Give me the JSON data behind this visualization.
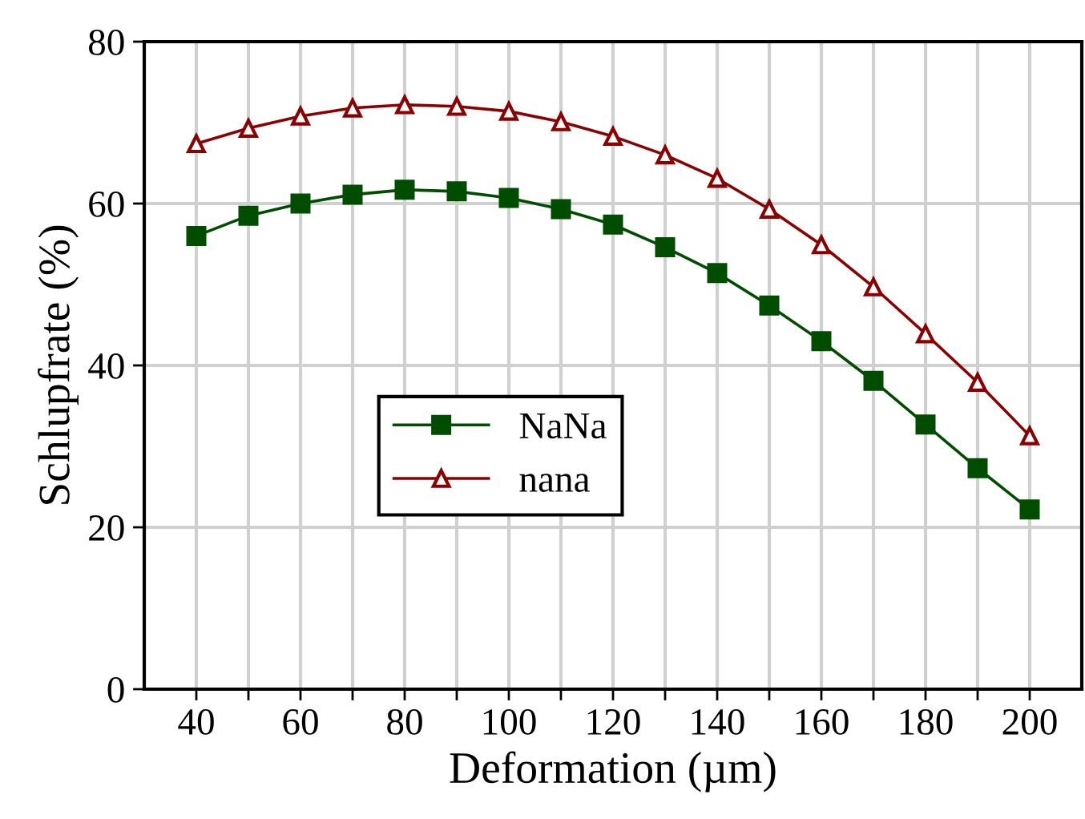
{
  "chart_data": {
    "type": "line",
    "xlabel": "Deformation (µm)",
    "ylabel": "Schlupfrate (%)",
    "x": [
      40,
      50,
      60,
      70,
      80,
      90,
      100,
      110,
      120,
      130,
      140,
      150,
      160,
      170,
      180,
      190,
      200
    ],
    "series": [
      {
        "name": "NaNa",
        "color": "#004d00",
        "marker": "square",
        "values": [
          56.0,
          58.5,
          60.0,
          61.1,
          61.7,
          61.5,
          60.7,
          59.3,
          57.4,
          54.6,
          51.4,
          47.4,
          43.0,
          38.1,
          32.7,
          27.3,
          22.2
        ]
      },
      {
        "name": "nana",
        "color": "#8b0000",
        "marker": "triangle",
        "values": [
          67.4,
          69.3,
          70.8,
          71.8,
          72.2,
          72.0,
          71.4,
          70.1,
          68.3,
          66.0,
          63.1,
          59.3,
          54.9,
          49.7,
          43.9,
          37.9,
          31.3
        ]
      }
    ],
    "xlim": [
      30,
      210
    ],
    "ylim": [
      0,
      80
    ],
    "xticks": [
      40,
      {
        "value": 50,
        "label": null
      },
      60,
      {
        "value": 70,
        "label": null
      },
      80,
      {
        "value": 90,
        "label": null
      },
      100,
      {
        "value": 110,
        "label": null
      },
      120,
      {
        "value": 130,
        "label": null
      },
      140,
      {
        "value": 150,
        "label": null
      },
      160,
      {
        "value": 170,
        "label": null
      },
      180,
      {
        "value": 190,
        "label": null
      },
      200
    ],
    "yticks": [
      0,
      20,
      40,
      60,
      80
    ],
    "grid": true,
    "legend": "center left",
    "line_style": "solid"
  }
}
